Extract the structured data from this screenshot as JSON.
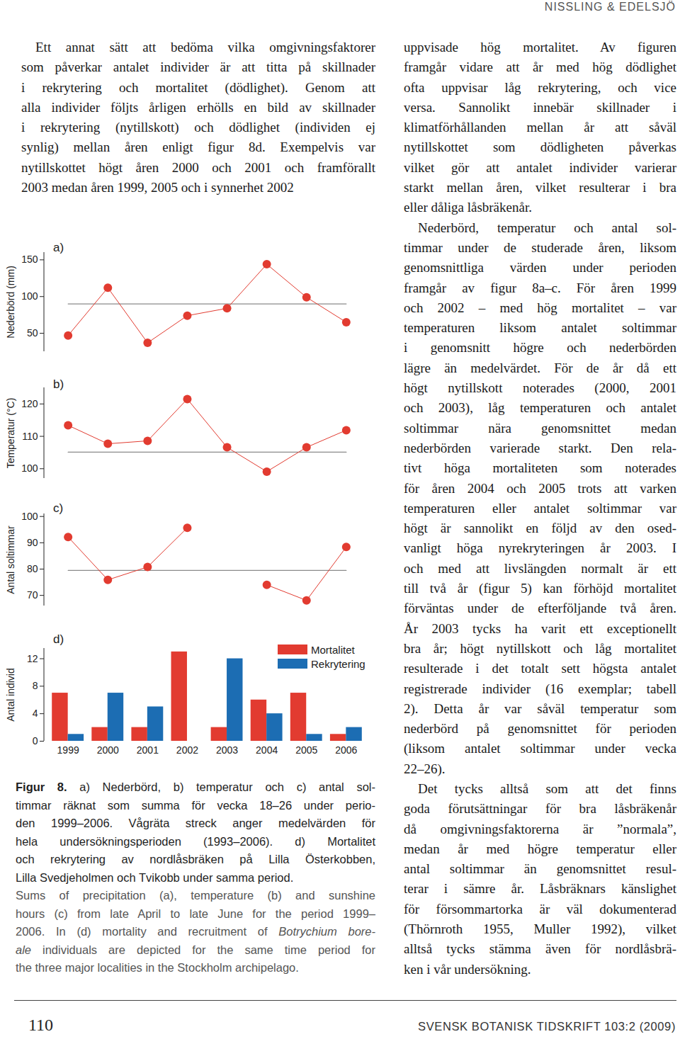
{
  "header": "NISSLING & EDELSJÖ",
  "left_column": [
    [
      "Ett annat sätt att bedöma vilka omgivningsfaktorer",
      "som påverkar antalet individer är att titta på skillnader",
      "i rekrytering och mortalitet (dödlighet). Genom att",
      "alla individer följts årligen erhölls en bild av skillnader",
      "i rekrytering (nytillskott) och dödlighet (individen ej",
      "synlig) mellan åren enligt figur 8d. Exempelvis var",
      "nytillskottet högt åren 2000 och 2001 och framförallt",
      "2003 medan åren 1999, 2005 och i synnerhet 2002"
    ]
  ],
  "right_column": [
    [
      "uppvisade hög mortalitet. Av figuren",
      "framgår vidare att år med hög dödlighet",
      "ofta uppvisar låg rekrytering, och vice",
      "versa. Sannolikt innebär skillnader i",
      "klimatförhållanden mellan år att såväl",
      "nytillskottet som dödligheten påverkas",
      "vilket gör att antalet individer varierar",
      "starkt mellan åren, vilket resulterar i bra",
      "eller dåliga låsbräkenår."
    ],
    [
      "Nederbörd, temperatur och antal sol-",
      "timmar under de studerade åren, liksom",
      "genomsnittliga värden under perioden",
      "framgår av figur 8a–c. För åren 1999",
      "och 2002 – med hög mortalitet – var",
      "temperaturen liksom antalet soltimmar",
      "i genomsnitt högre och nederbörden",
      "lägre än medelvärdet. För de år då ett",
      "högt nytillskott noterades (2000, 2001",
      "och 2003), låg temperaturen och antalet",
      "soltimmar nära genomsnittet medan",
      "nederbörden varierade starkt. Den rela-",
      "tivt höga mortaliteten som noterades",
      "för åren 2004 och 2005 trots att varken",
      "temperaturen eller antalet soltimmar var",
      "högt är sannolikt en följd av den osed-",
      "vanligt höga nyrekryteringen år 2003. I",
      "och med att livslängden normalt är ett",
      "till två år (figur 5) kan förhöjd mortalitet",
      "förväntas under de efterföljande två åren.",
      "År 2003 tycks ha varit ett exceptionellt",
      "bra år; högt nytillskott och låg mortalitet",
      "resulterade i det totalt sett högsta antalet",
      "registrerade individer (16 exemplar; tabell",
      "2). Detta år var såväl temperatur som",
      "nederbörd på genomsnittet för perioden",
      "(liksom antalet soltimmar under vecka",
      "22–26)."
    ],
    [
      "Det tycks alltså som att det finns",
      "goda förutsättningar för bra låsbräkenår",
      "då omgivningsfaktorerna är ”normala”,",
      "medan år med högre temperatur eller",
      "antal soltimmar än genomsnittet resul-",
      "terar i sämre år. Låsbräknars känslighet",
      "för försommartorka är väl dokumenterad",
      "(Thörnroth 1955, Muller 1992), vilket",
      "alltså tycks stämma även för nordlåsbrä-",
      "ken i vår undersökning."
    ]
  ],
  "chart_data": [
    {
      "type": "line",
      "title": "a)",
      "y_label": "Nederbörd (mm)",
      "categories": [
        "1999",
        "2000",
        "2001",
        "2002",
        "2003",
        "2004",
        "2005",
        "2006"
      ],
      "values": [
        47,
        112,
        37,
        74,
        84,
        144,
        99,
        65
      ],
      "color": "#e23b30",
      "marker": "circle",
      "mean": 90,
      "ylim": [
        25,
        160
      ],
      "yticks": [
        50,
        100,
        150
      ],
      "tick_labels": "y"
    },
    {
      "type": "line",
      "title": "b)",
      "y_label": "Temperatur (°C)",
      "categories": [
        "1999",
        "2000",
        "2001",
        "2002",
        "2003",
        "2004",
        "2005",
        "2006"
      ],
      "values": [
        113.4,
        107.7,
        108.6,
        121.5,
        106.6,
        99.1,
        106.6,
        111.9
      ],
      "color": "#e23b30",
      "marker": "circle",
      "mean": 105.1,
      "ylim": [
        97,
        125
      ],
      "yticks": [
        100,
        110,
        120
      ],
      "tick_labels": "y"
    },
    {
      "type": "line",
      "title": "c)",
      "y_label": "Antal soltimmar",
      "categories": [
        "1999",
        "2000",
        "2001",
        "2002",
        "2003",
        "2004",
        "2005",
        "2006"
      ],
      "values": [
        92.2,
        75.9,
        80.8,
        95.7,
        null,
        74,
        68.1,
        88.4
      ],
      "color": "#e23b30",
      "marker": "circle",
      "mean": 79.5,
      "ylim": [
        66,
        101
      ],
      "yticks": [
        70,
        80,
        90,
        100
      ],
      "tick_labels": "y"
    },
    {
      "type": "bar",
      "title": "d)",
      "y_label": "Antal individ",
      "categories": [
        "1999",
        "2000",
        "2001",
        "2002",
        "2003",
        "2004",
        "2005",
        "2006"
      ],
      "series": [
        {
          "name": "Mortalitet",
          "color": "#e23b30",
          "values": [
            7,
            2,
            2,
            13,
            2,
            6,
            7,
            1
          ]
        },
        {
          "name": "Rekrytering",
          "color": "#1c6db3",
          "values": [
            1,
            7,
            5,
            0,
            12,
            4,
            1,
            2
          ]
        }
      ],
      "ylim": [
        0,
        13.5
      ],
      "yticks": [
        0,
        4,
        8,
        12
      ],
      "legend": "top-right"
    }
  ],
  "caption": {
    "swedish": [
      [
        {
          "text": "Figur 8.",
          "bold": true
        },
        " a) Nederbörd, b) temperatur och c) antal sol-"
      ],
      "timmar räknat som summa för vecka 18–26 under perio-",
      "den 1999–2006. Vågräta streck anger medelvärden för",
      "hela undersökningsperioden (1993–2006). d) Mortalitet",
      "och rekrytering av nordlåsbräken på Lilla Österkobben,",
      "Lilla Svedjeholmen och Tvikobb under samma period."
    ],
    "english": [
      "Sums of precipitation (a), temperature (b) and sunshine",
      "hours (c) from late April to late June for the period 1999–",
      [
        "2006. In (d) mortality and recruitment of ",
        {
          "text": "Botrychium bore-",
          "italic": true
        }
      ],
      [
        {
          "text": "ale",
          "italic": true
        },
        " individuals are depicted for the same time period for"
      ],
      "the three major localities in the Stockholm archipelago."
    ]
  },
  "footer": {
    "page": "110",
    "journal": "SVENSK BOTANISK TIDSKRIFT 103:2 (2009)"
  }
}
